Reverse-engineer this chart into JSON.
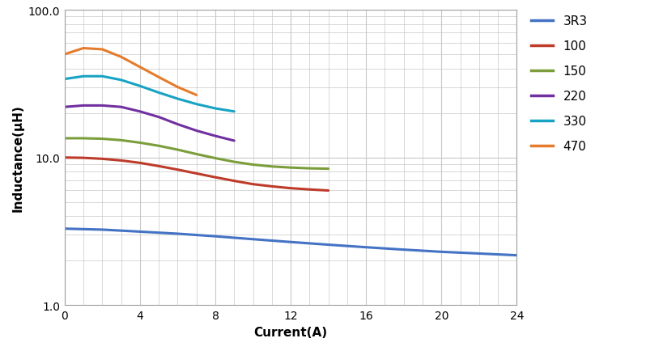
{
  "series": [
    {
      "label": "3R3",
      "color": "#4472C4",
      "x": [
        0,
        2,
        4,
        6,
        8,
        10,
        12,
        14,
        16,
        18,
        20,
        22,
        24
      ],
      "y": [
        3.3,
        3.25,
        3.15,
        3.05,
        2.93,
        2.8,
        2.68,
        2.57,
        2.47,
        2.38,
        2.3,
        2.24,
        2.18
      ]
    },
    {
      "label": "100",
      "color": "#BE3B2A",
      "x": [
        0,
        1,
        2,
        3,
        4,
        5,
        6,
        7,
        8,
        9,
        10,
        11,
        12,
        13,
        14
      ],
      "y": [
        10.0,
        9.95,
        9.8,
        9.55,
        9.2,
        8.75,
        8.28,
        7.8,
        7.35,
        6.95,
        6.6,
        6.38,
        6.2,
        6.08,
        5.98
      ]
    },
    {
      "label": "150",
      "color": "#7B9E3B",
      "x": [
        0,
        1,
        2,
        3,
        4,
        5,
        6,
        7,
        8,
        9,
        10,
        11,
        12,
        13,
        14
      ],
      "y": [
        13.5,
        13.5,
        13.4,
        13.1,
        12.6,
        12.0,
        11.3,
        10.55,
        9.9,
        9.35,
        8.95,
        8.7,
        8.55,
        8.45,
        8.4
      ]
    },
    {
      "label": "220",
      "color": "#7030A0",
      "x": [
        0,
        1,
        2,
        3,
        4,
        5,
        6,
        7,
        8,
        9
      ],
      "y": [
        22.0,
        22.5,
        22.5,
        22.0,
        20.5,
        18.8,
        16.8,
        15.2,
        14.0,
        13.0
      ]
    },
    {
      "label": "330",
      "color": "#17A3C4",
      "x": [
        0,
        1,
        2,
        3,
        4,
        5,
        6,
        7,
        8,
        9
      ],
      "y": [
        34.0,
        35.5,
        35.5,
        33.5,
        30.5,
        27.5,
        25.0,
        23.0,
        21.5,
        20.5
      ]
    },
    {
      "label": "470",
      "color": "#E57B2B",
      "x": [
        0,
        1,
        2,
        3,
        4,
        5,
        6,
        7
      ],
      "y": [
        50.0,
        55.0,
        54.0,
        48.0,
        41.0,
        35.0,
        30.0,
        26.5
      ]
    }
  ],
  "xlabel": "Current(A)",
  "ylabel": "Inductance(μH)",
  "xlim": [
    0,
    24
  ],
  "ylim_log": [
    1.0,
    100.0
  ],
  "xticks": [
    0,
    4,
    8,
    12,
    16,
    20,
    24
  ],
  "grid_color": "#C8C8C8",
  "bg_color": "#FFFFFF",
  "line_width": 2.2
}
